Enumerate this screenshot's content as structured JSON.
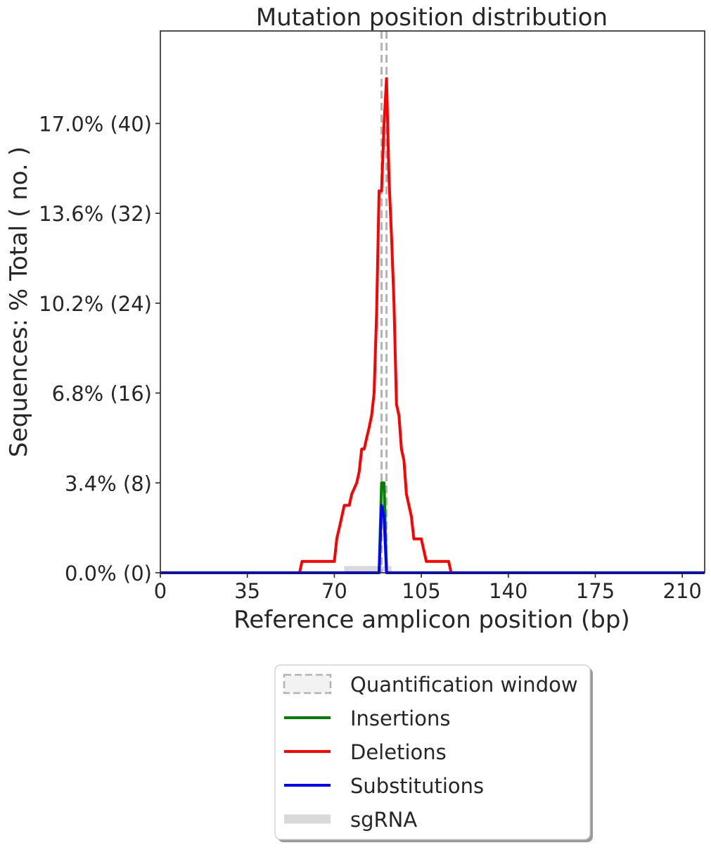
{
  "chart_data": {
    "type": "line",
    "title": "Mutation position distribution",
    "xlabel": "Reference amplicon position (bp)",
    "ylabel": "Sequences: % Total ( no. )",
    "xlim": [
      0,
      219
    ],
    "ylim": [
      0,
      20.5
    ],
    "x_ticks": [
      0,
      35,
      70,
      105,
      140,
      175,
      210
    ],
    "y_ticks": [
      {
        "value": 0.0,
        "label": "0.0% (0)"
      },
      {
        "value": 3.4,
        "label": "3.4% (8)"
      },
      {
        "value": 6.8,
        "label": "6.8% (16)"
      },
      {
        "value": 10.2,
        "label": "10.2% (24)"
      },
      {
        "value": 13.6,
        "label": "13.6% (32)"
      },
      {
        "value": 17.0,
        "label": "17.0% (40)"
      }
    ],
    "grid": false,
    "legend_position": "below",
    "quantification_window": {
      "start": 89,
      "end": 91,
      "color": "#b3b3b3",
      "fill": "#f2f2f2"
    },
    "sgrna": {
      "start": 74,
      "end": 93,
      "value": 0.15,
      "color": "#d9d9d9"
    },
    "series": [
      {
        "name": "Deletions",
        "color": "#ff0000",
        "points": [
          [
            0,
            0
          ],
          [
            56,
            0
          ],
          [
            57,
            0.43
          ],
          [
            70,
            0.43
          ],
          [
            71,
            1.3
          ],
          [
            72,
            1.7
          ],
          [
            74,
            2.55
          ],
          [
            76,
            2.55
          ],
          [
            77,
            2.98
          ],
          [
            79,
            3.4
          ],
          [
            80,
            3.83
          ],
          [
            81,
            4.68
          ],
          [
            82,
            4.68
          ],
          [
            83,
            5.1
          ],
          [
            84,
            5.5
          ],
          [
            85,
            5.95
          ],
          [
            86,
            6.8
          ],
          [
            87,
            9.8
          ],
          [
            88,
            14.45
          ],
          [
            89,
            14.45
          ],
          [
            90,
            17.0
          ],
          [
            91,
            18.7
          ],
          [
            92,
            14.9
          ],
          [
            93,
            12.75
          ],
          [
            94,
            10.2
          ],
          [
            95,
            6.38
          ],
          [
            96,
            5.95
          ],
          [
            97,
            4.68
          ],
          [
            98,
            4.25
          ],
          [
            99,
            2.98
          ],
          [
            100,
            2.55
          ],
          [
            101,
            2.13
          ],
          [
            102,
            1.28
          ],
          [
            105,
            1.28
          ],
          [
            106,
            0.85
          ],
          [
            107,
            0.43
          ],
          [
            116,
            0.43
          ],
          [
            117,
            0
          ],
          [
            219,
            0
          ]
        ]
      },
      {
        "name": "Insertions",
        "color": "#008000",
        "points": [
          [
            0,
            0
          ],
          [
            88,
            0
          ],
          [
            89,
            3.4
          ],
          [
            90,
            3.4
          ],
          [
            91,
            0
          ],
          [
            219,
            0
          ]
        ]
      },
      {
        "name": "Substitutions",
        "color": "#0000ff",
        "points": [
          [
            0,
            0
          ],
          [
            88,
            0
          ],
          [
            89,
            2.55
          ],
          [
            90,
            2.13
          ],
          [
            91,
            0
          ],
          [
            219,
            0
          ]
        ]
      }
    ],
    "legend": [
      {
        "label": "Quantification window",
        "kind": "dashed-box"
      },
      {
        "label": "Insertions",
        "kind": "line",
        "color": "#008000"
      },
      {
        "label": "Deletions",
        "kind": "line",
        "color": "#ff0000"
      },
      {
        "label": "Substitutions",
        "kind": "line",
        "color": "#0000ff"
      },
      {
        "label": "sgRNA",
        "kind": "thick",
        "color": "#d9d9d9"
      }
    ]
  }
}
